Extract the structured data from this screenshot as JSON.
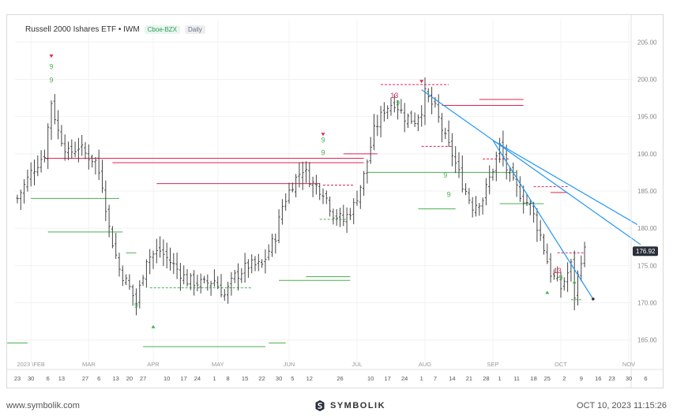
{
  "header": {
    "title": "Russell 2000 Ishares ETF • IWM",
    "exchange": "Cboe-BZX",
    "period": "Daily"
  },
  "footer": {
    "website": "www.symbolik.com",
    "brand": "SYMBOLIK",
    "timestamp": "OCT 10, 2023 11:15:26"
  },
  "colors": {
    "bar": "#444444",
    "support": "#4caf50",
    "resistance": "#e0244f",
    "trendline": "#2196f3",
    "count_green": "#4caf50",
    "count_red": "#e0244f"
  },
  "chart_data": {
    "type": "ohlc",
    "yaxis": {
      "min": 162,
      "max": 208,
      "ticks": [
        "205.00",
        "200.00",
        "195.00",
        "190.00",
        "185.00",
        "180.00",
        "175.00",
        "170.00",
        "165.00"
      ],
      "tick_values": [
        205,
        200,
        195,
        190,
        185,
        180,
        175,
        170,
        165
      ]
    },
    "current_price": "176.92",
    "current_price_value": 176.92,
    "month_labels": [
      {
        "label": "2023 \\FEB",
        "i": 4
      },
      {
        "label": "MAR",
        "i": 21
      },
      {
        "label": "APR",
        "i": 40
      },
      {
        "label": "MAY",
        "i": 59
      },
      {
        "label": "JUN",
        "i": 80
      },
      {
        "label": "JUL",
        "i": 100
      },
      {
        "label": "AUG",
        "i": 120
      },
      {
        "label": "SEP",
        "i": 140
      },
      {
        "label": "OCT",
        "i": 160
      },
      {
        "label": "NOV",
        "i": 180
      }
    ],
    "day_labels": [
      {
        "label": "23",
        "i": 0
      },
      {
        "label": "30",
        "i": 4
      },
      {
        "label": "6",
        "i": 9
      },
      {
        "label": "13",
        "i": 13
      },
      {
        "label": "27",
        "i": 20
      },
      {
        "label": "6",
        "i": 24
      },
      {
        "label": "13",
        "i": 29
      },
      {
        "label": "20",
        "i": 33
      },
      {
        "label": "27",
        "i": 37
      },
      {
        "label": "10",
        "i": 44
      },
      {
        "label": "17",
        "i": 49
      },
      {
        "label": "24",
        "i": 53
      },
      {
        "label": "1",
        "i": 58
      },
      {
        "label": "8",
        "i": 62
      },
      {
        "label": "15",
        "i": 67
      },
      {
        "label": "22",
        "i": 72
      },
      {
        "label": "30",
        "i": 77
      },
      {
        "label": "5",
        "i": 81
      },
      {
        "label": "12",
        "i": 86
      },
      {
        "label": "26",
        "i": 95
      },
      {
        "label": "10",
        "i": 104
      },
      {
        "label": "17",
        "i": 109
      },
      {
        "label": "24",
        "i": 114
      },
      {
        "label": "1",
        "i": 119
      },
      {
        "label": "7",
        "i": 123
      },
      {
        "label": "14",
        "i": 128
      },
      {
        "label": "21",
        "i": 133
      },
      {
        "label": "28",
        "i": 138
      },
      {
        "label": "1",
        "i": 142
      },
      {
        "label": "11",
        "i": 147
      },
      {
        "label": "18",
        "i": 152
      },
      {
        "label": "25",
        "i": 156
      },
      {
        "label": "2",
        "i": 161
      },
      {
        "label": "9",
        "i": 166
      },
      {
        "label": "16",
        "i": 171
      },
      {
        "label": "23",
        "i": 175
      },
      {
        "label": "30",
        "i": 180
      },
      {
        "label": "6",
        "i": 185
      }
    ],
    "anchors": [
      [
        0,
        184
      ],
      [
        4,
        187.5
      ],
      [
        8,
        190
      ],
      [
        10,
        197
      ],
      [
        12,
        193
      ],
      [
        15,
        190
      ],
      [
        18,
        191
      ],
      [
        20,
        190
      ],
      [
        23,
        189
      ],
      [
        25,
        186
      ],
      [
        27,
        180
      ],
      [
        30,
        174.5
      ],
      [
        33,
        172
      ],
      [
        35,
        170
      ],
      [
        38,
        176
      ],
      [
        42,
        177
      ],
      [
        46,
        175
      ],
      [
        50,
        173
      ],
      [
        55,
        172.5
      ],
      [
        58,
        173
      ],
      [
        61,
        171
      ],
      [
        64,
        173.5
      ],
      [
        68,
        175
      ],
      [
        72,
        175
      ],
      [
        76,
        179
      ],
      [
        78,
        183
      ],
      [
        81,
        186
      ],
      [
        84,
        188
      ],
      [
        87,
        186
      ],
      [
        90,
        185
      ],
      [
        93,
        182
      ],
      [
        96,
        181
      ],
      [
        99,
        183
      ],
      [
        102,
        187
      ],
      [
        105,
        193
      ],
      [
        108,
        196
      ],
      [
        111,
        197
      ],
      [
        114,
        195
      ],
      [
        117,
        194.5
      ],
      [
        119,
        196
      ],
      [
        120,
        198
      ],
      [
        123,
        196
      ],
      [
        126,
        192
      ],
      [
        128,
        190
      ],
      [
        131,
        186
      ],
      [
        134,
        183
      ],
      [
        137,
        184
      ],
      [
        140,
        188
      ],
      [
        142,
        191
      ],
      [
        144,
        188
      ],
      [
        146,
        186
      ],
      [
        149,
        184
      ],
      [
        151,
        183
      ],
      [
        154,
        179
      ],
      [
        157,
        174
      ],
      [
        160,
        172
      ],
      [
        163,
        175
      ],
      [
        164,
        171
      ],
      [
        166,
        176
      ],
      [
        167,
        176.9
      ]
    ],
    "sessions": 168,
    "support_levels": [
      {
        "value": 184.0,
        "from": 4,
        "to": 30
      },
      {
        "value": 179.5,
        "from": 9,
        "to": 31
      },
      {
        "value": 164.6,
        "from": -3,
        "to": 3
      },
      {
        "value": 164.1,
        "from": 37,
        "to": 73
      },
      {
        "value": 164.6,
        "from": 74,
        "to": 79
      },
      {
        "value": 173.0,
        "from": 77,
        "to": 98
      },
      {
        "value": 173.5,
        "from": 85,
        "to": 98
      },
      {
        "value": 176.7,
        "from": 32,
        "to": 35
      },
      {
        "value": 187.5,
        "from": 103,
        "to": 147
      },
      {
        "value": 182.6,
        "from": 118,
        "to": 129
      },
      {
        "value": 183.3,
        "from": 142,
        "to": 155
      }
    ],
    "dashed_support": [
      {
        "value": 172.0,
        "from": 39,
        "to": 69
      },
      {
        "value": 181.2,
        "from": 89,
        "to": 97
      },
      {
        "value": 170.4,
        "from": 163,
        "to": 166
      }
    ],
    "resistance_levels": [
      {
        "value": 189.4,
        "from": 8,
        "to": 102
      },
      {
        "value": 188.8,
        "from": 28,
        "to": 102
      },
      {
        "value": 186.0,
        "from": 41,
        "to": 89
      },
      {
        "value": 190.0,
        "from": 96,
        "to": 106
      },
      {
        "value": 196.5,
        "from": 125,
        "to": 149
      },
      {
        "value": 197.3,
        "from": 136,
        "to": 149
      },
      {
        "value": 184.8,
        "from": 157,
        "to": 162
      }
    ],
    "dashed_resistance": [
      {
        "value": 199.3,
        "from": 107,
        "to": 127
      },
      {
        "value": 191.0,
        "from": 119,
        "to": 128
      },
      {
        "value": 185.8,
        "from": 90,
        "to": 99
      },
      {
        "value": 189.3,
        "from": 137,
        "to": 145
      },
      {
        "value": 185.6,
        "from": 152,
        "to": 162
      },
      {
        "value": 176.7,
        "from": 159,
        "to": 167
      }
    ],
    "trendlines": [
      {
        "x1": 119,
        "y1": 198.6,
        "x2": 183.5,
        "y2": 177.8
      },
      {
        "x1": 140,
        "y1": 191.8,
        "x2": 182.5,
        "y2": 180.5
      },
      {
        "x1": 140,
        "y1": 191.8,
        "x2": 169.5,
        "y2": 170.5
      }
    ],
    "signals": [
      {
        "i": 10,
        "v": 201.4,
        "text": "9",
        "color": "green"
      },
      {
        "i": 10,
        "v": 199.6,
        "text": "9",
        "color": "green"
      },
      {
        "i": 90,
        "v": 189.8,
        "text": "9",
        "color": "green"
      },
      {
        "i": 90,
        "v": 191.5,
        "text": "9",
        "color": "green"
      },
      {
        "i": 111,
        "v": 197.5,
        "text": "13",
        "color": "red"
      },
      {
        "i": 112,
        "v": 196.5,
        "text": "9",
        "color": "green"
      },
      {
        "i": 35,
        "v": 169.3,
        "text": "9",
        "color": "green"
      },
      {
        "i": 126,
        "v": 186.8,
        "text": "9",
        "color": "green"
      },
      {
        "i": 127,
        "v": 184.2,
        "text": "9",
        "color": "green"
      },
      {
        "i": 159,
        "v": 174.0,
        "text": "13",
        "color": "red"
      },
      {
        "i": 160,
        "v": 173.0,
        "text": "9",
        "color": "green"
      }
    ]
  }
}
